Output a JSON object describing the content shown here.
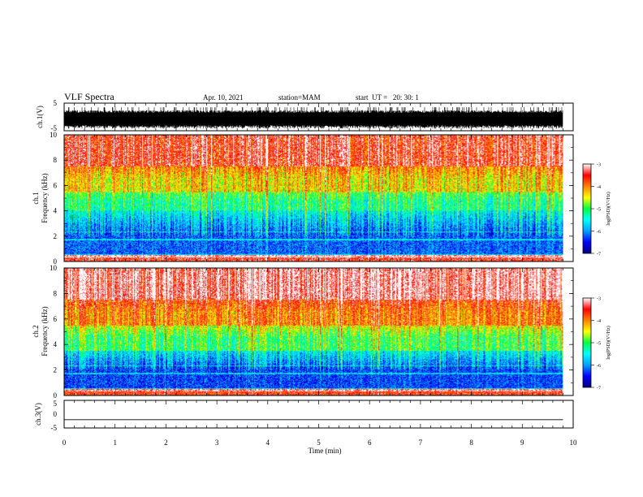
{
  "header": {
    "title": "VLF Spectra",
    "date": "Apr. 10, 2021",
    "station": "station=MAM",
    "start_ut": "start  UT =   20: 30: 1"
  },
  "chart_data": [
    {
      "type": "line",
      "panel": "ch1-waveform",
      "ylabel": "ch.1(V)",
      "ylim": [
        -5,
        5
      ],
      "yticks": [
        "5",
        "-5"
      ],
      "xlim": [
        0,
        10
      ],
      "series_description": "dense noisy waveform, amplitude roughly -4 to 2 V"
    },
    {
      "type": "heatmap",
      "panel": "ch1-spectrogram",
      "ylabel_line1": "ch.1",
      "ylabel_line2": "Frequency (kHz)",
      "ylim": [
        0,
        10
      ],
      "yticks": [
        "0",
        "2",
        "4",
        "6",
        "8",
        "10"
      ],
      "xlim": [
        0,
        10
      ],
      "colorbar": {
        "label": "log(PSD)(V²/Hz)",
        "range": [
          -7,
          -3
        ],
        "ticks": [
          "-3",
          "-4",
          "-5",
          "-6",
          "-7"
        ]
      },
      "bands": [
        {
          "freq_range_khz": [
            0,
            0.5
          ],
          "log_psd": -3.5
        },
        {
          "freq_range_khz": [
            0.5,
            4
          ],
          "log_psd": -6.2
        },
        {
          "freq_range_khz": [
            4,
            5.5
          ],
          "log_psd": -5.2
        },
        {
          "freq_range_khz": [
            5.5,
            7.5
          ],
          "log_psd": -4.4
        },
        {
          "freq_range_khz": [
            7.5,
            10
          ],
          "log_psd": -3.5
        }
      ]
    },
    {
      "type": "heatmap",
      "panel": "ch2-spectrogram",
      "ylabel_line1": "ch.2",
      "ylabel_line2": "Frequency (kHz)",
      "ylim": [
        0,
        10
      ],
      "yticks": [
        "0",
        "2",
        "4",
        "6",
        "8",
        "10"
      ],
      "xlim": [
        0,
        10
      ],
      "colorbar": {
        "label": "log(PSD)(V²/Hz)",
        "range": [
          -7,
          -3
        ],
        "ticks": [
          "-3",
          "-4",
          "-5",
          "-6",
          "-7"
        ]
      },
      "bands": [
        {
          "freq_range_khz": [
            0,
            0.5
          ],
          "log_psd": -3.6
        },
        {
          "freq_range_khz": [
            0.5,
            3.5
          ],
          "log_psd": -6.3
        },
        {
          "freq_range_khz": [
            3.5,
            5.5
          ],
          "log_psd": -5.0
        },
        {
          "freq_range_khz": [
            5.5,
            7.5
          ],
          "log_psd": -4.0
        },
        {
          "freq_range_khz": [
            7.5,
            10
          ],
          "log_psd": -3.2
        }
      ]
    },
    {
      "type": "line",
      "panel": "ch3-waveform",
      "ylabel": "ch.3(V)",
      "ylim": [
        -5,
        5
      ],
      "yticks": [
        "5",
        "0",
        "-5"
      ],
      "xlim": [
        0,
        10
      ],
      "series": [
        {
          "x": [
            0,
            9.8
          ],
          "y": [
            -2,
            -2
          ]
        }
      ]
    }
  ],
  "x_axis": {
    "label": "Time (min)",
    "ticks": [
      "0",
      "1",
      "2",
      "3",
      "4",
      "5",
      "6",
      "7",
      "8",
      "9",
      "10"
    ],
    "xlim": [
      0,
      10
    ],
    "data_end_min": 9.8
  },
  "colors": {
    "colormap": [
      "#000080",
      "#0000ff",
      "#00a0ff",
      "#00ffff",
      "#00ff40",
      "#ffff00",
      "#ff8000",
      "#ff0000",
      "#ffffff"
    ]
  }
}
